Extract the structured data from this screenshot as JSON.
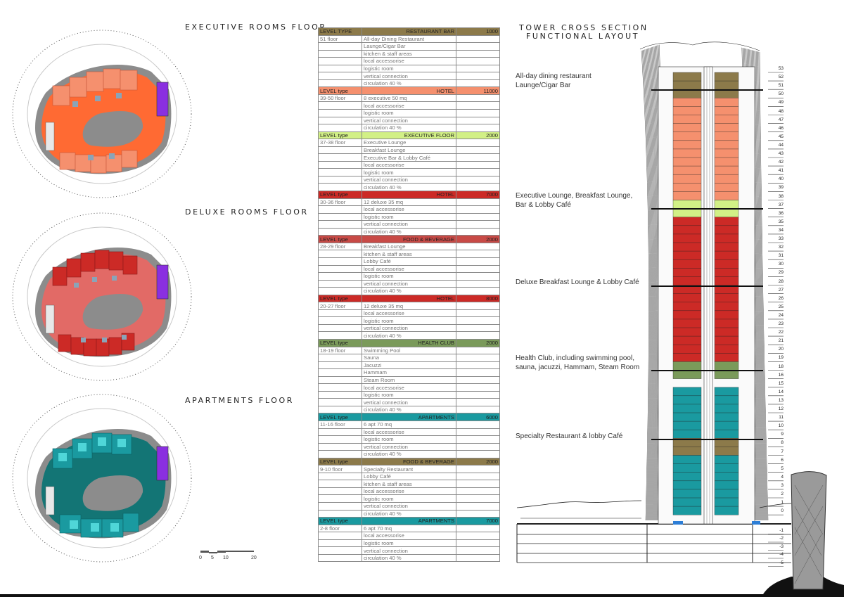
{
  "headings": {
    "executive": "EXECUTIVE ROOMS FLOOR",
    "deluxe": "DELUXE ROOMS FLOOR",
    "apartments": "APARTMENTS FLOOR",
    "section_line1": "TOWER CROSS SECTION",
    "section_line2": "FUNCTIONAL LAYOUT"
  },
  "colors": {
    "restaurant_bar": "#8c7a4a",
    "hotel_exec": "#f5906e",
    "exec_floor": "#d2f086",
    "hotel_deluxe": "#cc2a26",
    "health_club": "#7a9a5a",
    "apartments": "#1a9aa0",
    "exec_plan": "#ff6a33",
    "deluxe_plan": "#e26a66",
    "apt_plan": "#137575",
    "violet": "#8a2fe0"
  },
  "scale_bar": {
    "labels": [
      "0",
      "5",
      "10",
      "20"
    ]
  },
  "table": [
    {
      "level": "LEVEL TYPE",
      "name": "RESTAURANT BAR",
      "area": "1000",
      "color": "#8c7a4a",
      "floor": "51 floor",
      "items": [
        "All-day Dining Restaurant",
        "Launge/Cigar Bar",
        "kitchen & staff areas",
        "local  accessorise",
        "logistic room",
        "vertical connection",
        "circulation 40 %"
      ]
    },
    {
      "level": "LEVEL type",
      "name": "HOTEL",
      "area": "11000",
      "color": "#f5906e",
      "floor": "39-50 floor",
      "items": [
        "8 executive 50 mq",
        "local accessorise",
        "logistic room",
        "vertical connection",
        "circulation 40 %"
      ]
    },
    {
      "level": "LEVEL type",
      "name": "EXECUTIVE FLOOR",
      "area": "2000",
      "color": "#d2f086",
      "floor": "37-38 floor",
      "items": [
        "Executive Lounge",
        "Breakfast Lounge",
        "Executive Bar & Lobby Café",
        "local accessorise",
        "logistic room",
        "vertical connection",
        "circulation 40 %"
      ]
    },
    {
      "level": "LEVEL type",
      "name": "HOTEL",
      "area": "7000",
      "color": "#cc2a26",
      "floor": "30-36 floor",
      "items": [
        "12 deluxe 35 mq",
        "local accessorise",
        "logistic room",
        "vertical connection",
        "circulation 40 %"
      ]
    },
    {
      "level": "LEVEL type",
      "name": "FOOD & BEVERAGE",
      "area": "2000",
      "color": "#c84a46",
      "floor": "28-29 floor",
      "items": [
        "Breakfast Lounge",
        "kitchen & staff areas",
        "Lobby Café",
        "local accessorise",
        "logistic room",
        "vertical connection",
        "circulation 40 %"
      ]
    },
    {
      "level": "LEVEL type",
      "name": "HOTEL",
      "area": "8000",
      "color": "#cc2a26",
      "floor": "20-27 floor",
      "items": [
        "12 deluxe 35 mq",
        "local accessorise",
        "logistic room",
        "vertical connection",
        "circulation 40 %"
      ]
    },
    {
      "level": "LEVEL type",
      "name": "HEALTH CLUB",
      "area": "2000",
      "color": "#7a9a5a",
      "floor": "18-19 floor",
      "items": [
        "Swimming Pool",
        "Sauna",
        "Jacuzzi",
        "Hammam",
        "Steam Room",
        "local accessorise",
        "logistic room",
        "vertical connection",
        "circulation 40 %"
      ]
    },
    {
      "level": "LEVEL type",
      "name": "APARTMENTS",
      "area": "6000",
      "color": "#1a9aa0",
      "floor": "11-16 floor",
      "items": [
        "6 apt 70 mq",
        "local accessorise",
        "logistic room",
        "vertical connection",
        "circulation 40 %"
      ]
    },
    {
      "level": "LEVEL type",
      "name": "FOOD & BEVERAGE",
      "area": "2000",
      "color": "#8c7a4a",
      "floor": "9-10 floor",
      "items": [
        "Specialty Restaurant",
        "Lobby Café",
        "kitchen & staff areas",
        "local accessorise",
        "logistic room",
        "vertical connection",
        "circulation 40 %"
      ]
    },
    {
      "level": "LEVEL type",
      "name": "APARTMENTS",
      "area": "7000",
      "color": "#1a9aa0",
      "floor": "2-8 floor",
      "items": [
        "6 apt 70 mq",
        "local accessorise",
        "logistic room",
        "vertical connection",
        "circulation 40 %"
      ]
    }
  ],
  "annotations": [
    "All-day dining restaurant\nLaunge/Cigar Bar",
    "Executive Lounge, Breakfast Lounge,\nBar & Lobby Café",
    "Deluxe Breakfast Lounge & Lobby Café",
    "Health Club, including swimming pool,\nsauna, jacuzzi, Hammam, Steam Room",
    "Specialty Restaurant & lobby Café"
  ],
  "floor_labels": [
    "53",
    "52",
    "51",
    "50",
    "49",
    "48",
    "47",
    "46",
    "45",
    "44",
    "43",
    "42",
    "41",
    "40",
    "39",
    "38",
    "37",
    "36",
    "35",
    "34",
    "33",
    "32",
    "31",
    "30",
    "29",
    "28",
    "27",
    "26",
    "25",
    "24",
    "23",
    "22",
    "21",
    "20",
    "19",
    "18",
    "16",
    "15",
    "14",
    "13",
    "12",
    "11",
    "10",
    "9",
    "8",
    "7",
    "6",
    "5",
    "4",
    "3",
    "2",
    "1",
    "0",
    "-1",
    "-2",
    "-3",
    "-4",
    "-5"
  ],
  "section_bands": [
    {
      "floors": "51-53",
      "color": "#8c7a4a"
    },
    {
      "floors": "39-50",
      "color": "#f5906e"
    },
    {
      "floors": "37-38",
      "color": "#d2f086"
    },
    {
      "floors": "20-36",
      "color": "#cc2a26"
    },
    {
      "floors": "18-19",
      "color": "#7a9a5a"
    },
    {
      "floors": "11-16",
      "color": "#1a9aa0"
    },
    {
      "floors": "9-10",
      "color": "#8c7a4a"
    },
    {
      "floors": "2-8",
      "color": "#1a9aa0"
    }
  ]
}
